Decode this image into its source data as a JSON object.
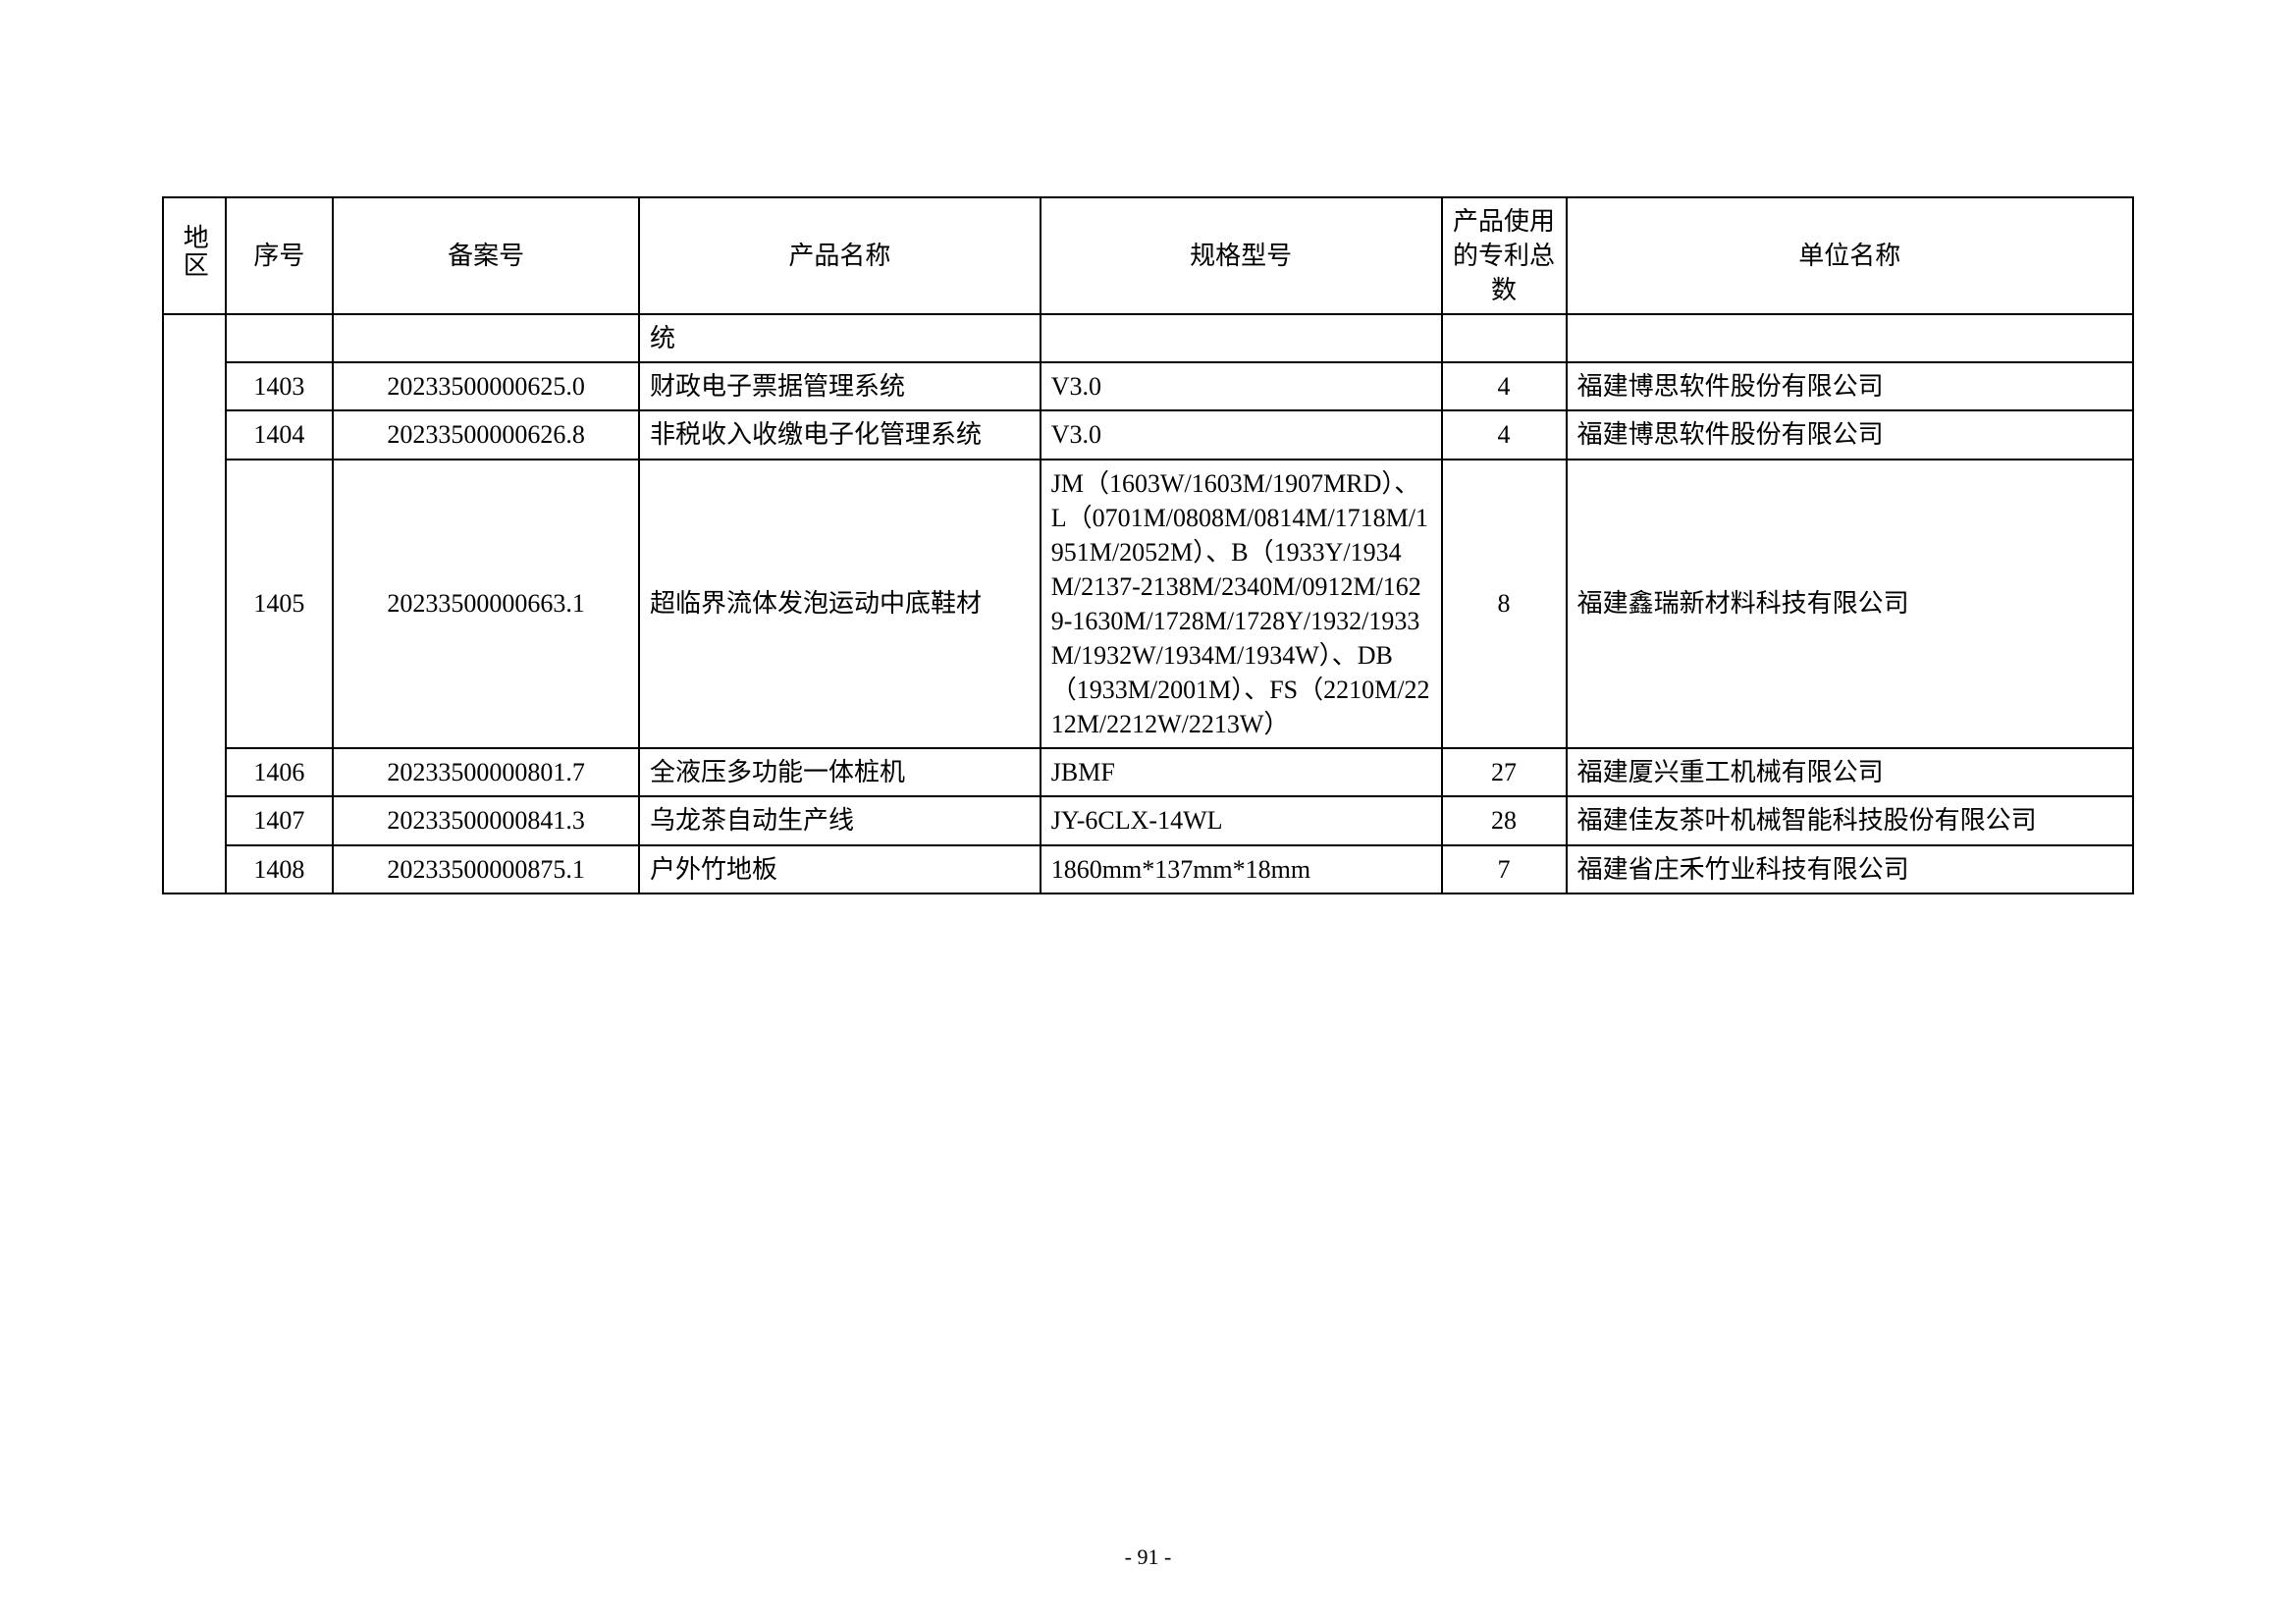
{
  "table": {
    "headers": {
      "region": "地区",
      "seq": "序号",
      "record_no": "备案号",
      "product_name": "产品名称",
      "spec_model": "规格型号",
      "patent_count": "产品使用的专利总数",
      "company": "单位名称"
    },
    "continuation_row": {
      "region": "",
      "seq": "",
      "record_no": "",
      "product_name": "统",
      "spec_model": "",
      "patent_count": "",
      "company": ""
    },
    "rows": [
      {
        "seq": "1403",
        "record_no": "20233500000625.0",
        "product_name": "财政电子票据管理系统",
        "spec_model": "V3.0",
        "patent_count": "4",
        "company": "福建博思软件股份有限公司"
      },
      {
        "seq": "1404",
        "record_no": "20233500000626.8",
        "product_name": "非税收入收缴电子化管理系统",
        "spec_model": "V3.0",
        "patent_count": "4",
        "company": "福建博思软件股份有限公司"
      },
      {
        "seq": "1405",
        "record_no": "20233500000663.1",
        "product_name": "超临界流体发泡运动中底鞋材",
        "spec_model": "JM（1603W/1603M/1907MRD）、L（0701M/0808M/0814M/1718M/1951M/2052M）、B（1933Y/1934M/2137-2138M/2340M/0912M/1629-1630M/1728M/1728Y/1932/1933M/1932W/1934M/1934W）、DB（1933M/2001M）、FS（2210M/2212M/2212W/2213W）",
        "patent_count": "8",
        "company": "福建鑫瑞新材料科技有限公司"
      },
      {
        "seq": "1406",
        "record_no": "20233500000801.7",
        "product_name": "全液压多功能一体桩机",
        "spec_model": "JBMF",
        "patent_count": "27",
        "company": "福建厦兴重工机械有限公司"
      },
      {
        "seq": "1407",
        "record_no": "20233500000841.3",
        "product_name": "乌龙茶自动生产线",
        "spec_model": "JY-6CLX-14WL",
        "patent_count": "28",
        "company": "福建佳友茶叶机械智能科技股份有限公司"
      },
      {
        "seq": "1408",
        "record_no": "20233500000875.1",
        "product_name": "户外竹地板",
        "spec_model": "1860mm*137mm*18mm",
        "patent_count": "7",
        "company": "福建省庄禾竹业科技有限公司"
      }
    ],
    "styling": {
      "border_color": "#000000",
      "border_width": 2,
      "background_color": "#ffffff",
      "font_family": "SimSun",
      "cell_font_size": 26,
      "header_font_size": 26,
      "column_widths": {
        "region": 55,
        "seq": 95,
        "record_no": 270,
        "product_name": 354,
        "spec_model": 354,
        "patent_count": 110,
        "company": 500
      },
      "alignments": {
        "region": "center",
        "seq": "center",
        "record_no": "center",
        "product_name": "left",
        "spec_model": "left",
        "patent_count": "center",
        "company": "left"
      }
    }
  },
  "page_number": "- 91 -"
}
